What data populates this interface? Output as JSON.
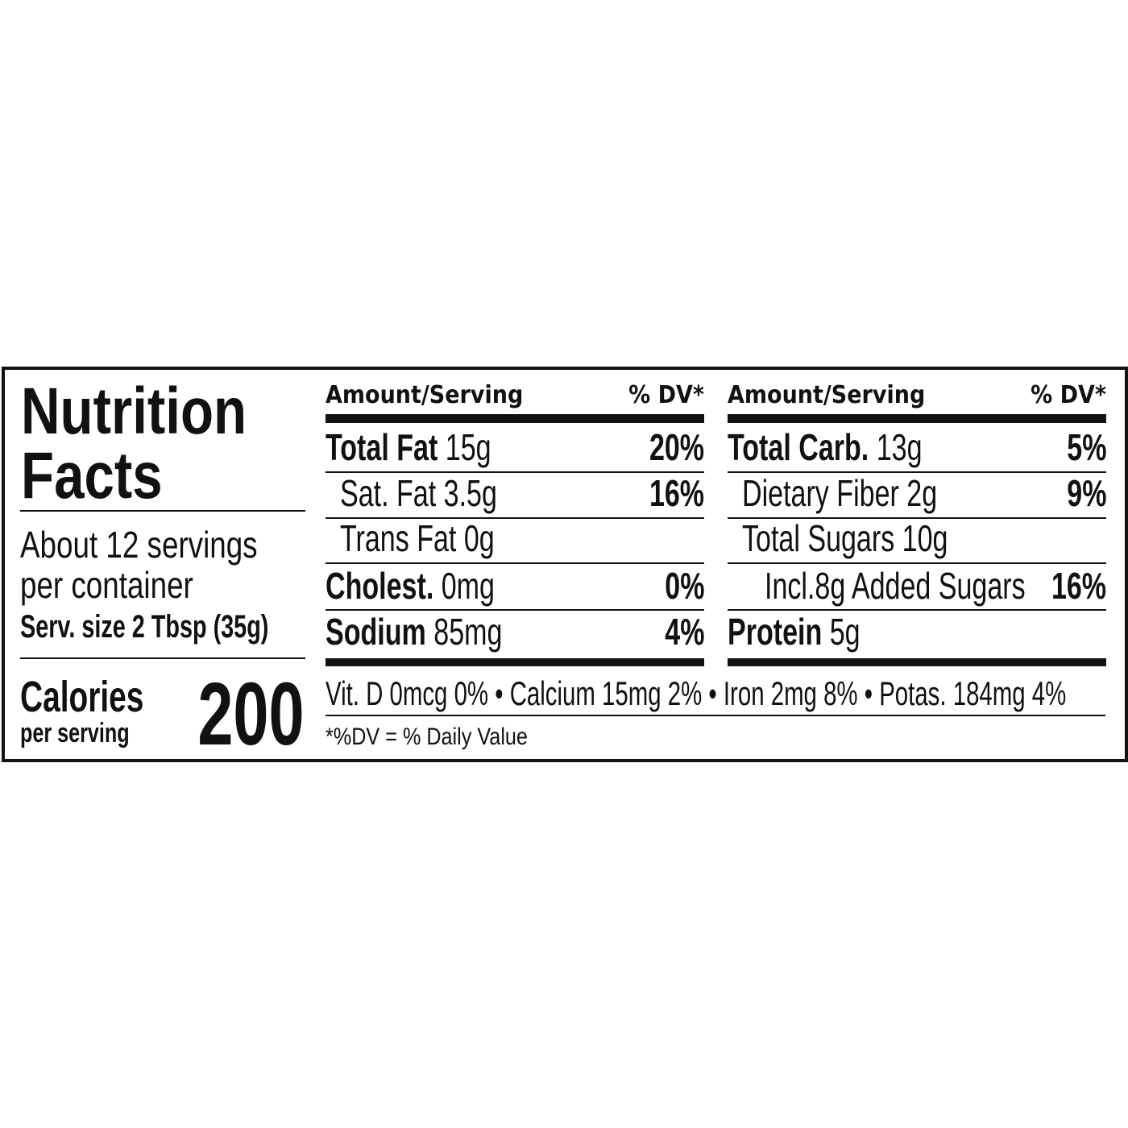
{
  "label": {
    "title_line1": "Nutrition",
    "title_line2": "Facts",
    "servings": "About 12 servings",
    "servings_line2": "per container",
    "serving_size": "Serv. size 2 Tbsp (35g)",
    "calories_label": "Calories",
    "calories_sub": "per serving",
    "calories_value": "200",
    "columns": [
      {
        "header_amount": "Amount/Serving",
        "header_dv": "% DV*",
        "rows": [
          {
            "name": "Total Fat",
            "amount": "15g",
            "dv": "20%",
            "bold": true,
            "indent": 0
          },
          {
            "name": "Sat. Fat",
            "amount": "3.5g",
            "dv": "16%",
            "bold": false,
            "indent": 1
          },
          {
            "name": "Trans Fat",
            "amount": "0g",
            "dv": "",
            "bold": false,
            "indent": 1
          },
          {
            "name": "Cholest.",
            "amount": "0mg",
            "dv": "0%",
            "bold": true,
            "indent": 0
          },
          {
            "name": "Sodium",
            "amount": "85mg",
            "dv": "4%",
            "bold": true,
            "indent": 0
          }
        ]
      },
      {
        "header_amount": "Amount/Serving",
        "header_dv": "% DV*",
        "rows": [
          {
            "name": "Total Carb.",
            "amount": "13g",
            "dv": "5%",
            "bold": true,
            "indent": 0
          },
          {
            "name": "Dietary Fiber",
            "amount": "2g",
            "dv": "9%",
            "bold": false,
            "indent": 1
          },
          {
            "name": "Total Sugars",
            "amount": "10g",
            "dv": "",
            "bold": false,
            "indent": 1
          },
          {
            "name": "Incl.8g Added Sugars",
            "amount": "",
            "dv": "16%",
            "bold": false,
            "indent": 2
          },
          {
            "name": "Protein",
            "amount": "5g",
            "dv": "",
            "bold": true,
            "indent": 0
          }
        ]
      }
    ],
    "vitamins": "Vit. D 0mcg 0% • Calcium 15mg 2% • Iron 2mg 8% • Potas. 184mg 4%",
    "footnote": "*%DV = % Daily Value"
  }
}
